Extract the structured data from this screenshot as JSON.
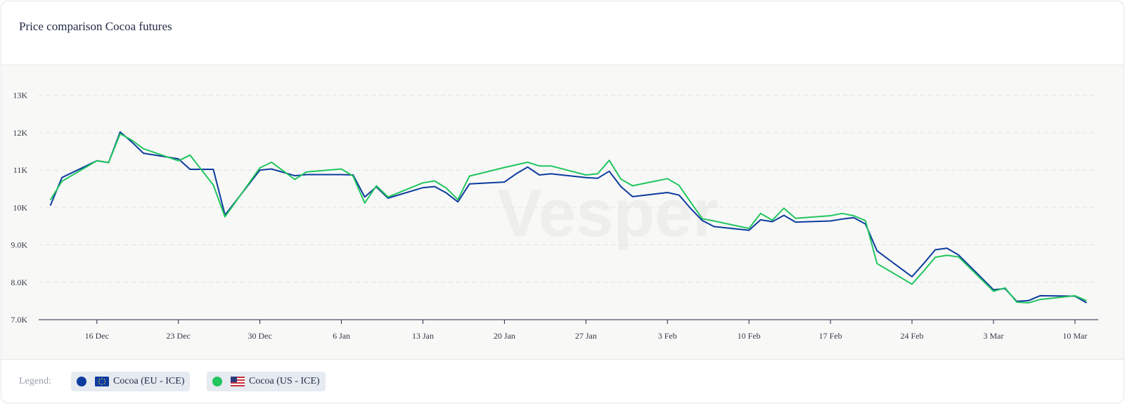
{
  "title": "Price comparison Cocoa futures",
  "watermark": "Vesper",
  "legend": {
    "label": "Legend:",
    "items": [
      {
        "name": "Cocoa (EU - ICE)",
        "color": "#0d3c9e",
        "flag": "eu-flag-icon"
      },
      {
        "name": "Cocoa (US - ICE)",
        "color": "#22c55e",
        "flag": "us-flag-icon"
      }
    ]
  },
  "chart_data": {
    "type": "line",
    "title": "Price comparison Cocoa futures",
    "xlabel": "",
    "ylabel": "",
    "ylim": [
      7000,
      13500
    ],
    "yticks": [
      7000,
      8000,
      9000,
      10000,
      11000,
      12000,
      13000
    ],
    "ytick_labels": [
      "7.0K",
      "8.0K",
      "9.0K",
      "10K",
      "11K",
      "12K",
      "13K"
    ],
    "xlim": [
      "2024-12-11",
      "2025-03-12"
    ],
    "xticks": [
      "2024-12-16",
      "2024-12-23",
      "2024-12-30",
      "2025-01-06",
      "2025-01-13",
      "2025-01-20",
      "2025-01-27",
      "2025-02-03",
      "2025-02-10",
      "2025-02-17",
      "2025-02-24",
      "2025-03-03",
      "2025-03-10"
    ],
    "xtick_labels": [
      "16 Dec",
      "23 Dec",
      "30 Dec",
      "6 Jan",
      "13 Jan",
      "20 Jan",
      "27 Jan",
      "3 Feb",
      "10 Feb",
      "17 Feb",
      "24 Feb",
      "3 Mar",
      "10 Mar"
    ],
    "grid": true,
    "legend_position": "bottom-left",
    "series": [
      {
        "name": "Cocoa (EU - ICE)",
        "color": "#0d3c9e",
        "points": [
          [
            "2024-12-12",
            10050
          ],
          [
            "2024-12-13",
            10800
          ],
          [
            "2024-12-16",
            11250
          ],
          [
            "2024-12-17",
            11200
          ],
          [
            "2024-12-18",
            12020
          ],
          [
            "2024-12-19",
            11750
          ],
          [
            "2024-12-20",
            11450
          ],
          [
            "2024-12-23",
            11300
          ],
          [
            "2024-12-24",
            11020
          ],
          [
            "2024-12-26",
            11020
          ],
          [
            "2024-12-27",
            9800
          ],
          [
            "2024-12-30",
            11000
          ],
          [
            "2024-12-31",
            11030
          ],
          [
            "2025-01-02",
            10850
          ],
          [
            "2025-01-03",
            10880
          ],
          [
            "2025-01-06",
            10880
          ],
          [
            "2025-01-07",
            10870
          ],
          [
            "2025-01-08",
            10280
          ],
          [
            "2025-01-09",
            10550
          ],
          [
            "2025-01-10",
            10250
          ],
          [
            "2025-01-13",
            10530
          ],
          [
            "2025-01-14",
            10560
          ],
          [
            "2025-01-15",
            10390
          ],
          [
            "2025-01-16",
            10150
          ],
          [
            "2025-01-17",
            10630
          ],
          [
            "2025-01-20",
            10680
          ],
          [
            "2025-01-21",
            10900
          ],
          [
            "2025-01-22",
            11080
          ],
          [
            "2025-01-23",
            10870
          ],
          [
            "2025-01-24",
            10900
          ],
          [
            "2025-01-27",
            10800
          ],
          [
            "2025-01-28",
            10780
          ],
          [
            "2025-01-29",
            10970
          ],
          [
            "2025-01-30",
            10560
          ],
          [
            "2025-01-31",
            10290
          ],
          [
            "2025-02-03",
            10400
          ],
          [
            "2025-02-04",
            10330
          ],
          [
            "2025-02-05",
            9970
          ],
          [
            "2025-02-06",
            9650
          ],
          [
            "2025-02-07",
            9490
          ],
          [
            "2025-02-10",
            9390
          ],
          [
            "2025-02-11",
            9670
          ],
          [
            "2025-02-12",
            9620
          ],
          [
            "2025-02-13",
            9790
          ],
          [
            "2025-02-14",
            9610
          ],
          [
            "2025-02-17",
            9640
          ],
          [
            "2025-02-18",
            9690
          ],
          [
            "2025-02-19",
            9730
          ],
          [
            "2025-02-20",
            9560
          ],
          [
            "2025-02-21",
            8840
          ],
          [
            "2025-02-24",
            8150
          ],
          [
            "2025-02-25",
            8500
          ],
          [
            "2025-02-26",
            8870
          ],
          [
            "2025-02-27",
            8910
          ],
          [
            "2025-02-28",
            8730
          ],
          [
            "2025-03-03",
            7800
          ],
          [
            "2025-03-04",
            7830
          ],
          [
            "2025-03-05",
            7490
          ],
          [
            "2025-03-06",
            7510
          ],
          [
            "2025-03-07",
            7640
          ],
          [
            "2025-03-10",
            7630
          ],
          [
            "2025-03-11",
            7450
          ]
        ]
      },
      {
        "name": "Cocoa (US - ICE)",
        "color": "#22c55e",
        "points": [
          [
            "2024-12-12",
            10200
          ],
          [
            "2024-12-13",
            10700
          ],
          [
            "2024-12-16",
            11250
          ],
          [
            "2024-12-17",
            11200
          ],
          [
            "2024-12-18",
            11970
          ],
          [
            "2024-12-19",
            11800
          ],
          [
            "2024-12-20",
            11570
          ],
          [
            "2024-12-23",
            11250
          ],
          [
            "2024-12-24",
            11400
          ],
          [
            "2024-12-26",
            10600
          ],
          [
            "2024-12-27",
            9750
          ],
          [
            "2024-12-30",
            11060
          ],
          [
            "2024-12-31",
            11210
          ],
          [
            "2025-01-02",
            10750
          ],
          [
            "2025-01-03",
            10950
          ],
          [
            "2025-01-06",
            11030
          ],
          [
            "2025-01-07",
            10840
          ],
          [
            "2025-01-08",
            10120
          ],
          [
            "2025-01-09",
            10580
          ],
          [
            "2025-01-10",
            10280
          ],
          [
            "2025-01-13",
            10660
          ],
          [
            "2025-01-14",
            10710
          ],
          [
            "2025-01-15",
            10520
          ],
          [
            "2025-01-16",
            10210
          ],
          [
            "2025-01-17",
            10840
          ],
          [
            "2025-01-20",
            11070
          ],
          [
            "2025-01-21",
            11140
          ],
          [
            "2025-01-22",
            11210
          ],
          [
            "2025-01-23",
            11110
          ],
          [
            "2025-01-24",
            11110
          ],
          [
            "2025-01-27",
            10870
          ],
          [
            "2025-01-28",
            10900
          ],
          [
            "2025-01-29",
            11260
          ],
          [
            "2025-01-30",
            10760
          ],
          [
            "2025-01-31",
            10580
          ],
          [
            "2025-02-03",
            10770
          ],
          [
            "2025-02-04",
            10590
          ],
          [
            "2025-02-05",
            10140
          ],
          [
            "2025-02-06",
            9700
          ],
          [
            "2025-02-07",
            9640
          ],
          [
            "2025-02-10",
            9440
          ],
          [
            "2025-02-11",
            9840
          ],
          [
            "2025-02-12",
            9660
          ],
          [
            "2025-02-13",
            9980
          ],
          [
            "2025-02-14",
            9710
          ],
          [
            "2025-02-17",
            9780
          ],
          [
            "2025-02-18",
            9840
          ],
          [
            "2025-02-19",
            9780
          ],
          [
            "2025-02-20",
            9650
          ],
          [
            "2025-02-21",
            8500
          ],
          [
            "2025-02-24",
            7950
          ],
          [
            "2025-02-25",
            8300
          ],
          [
            "2025-02-26",
            8670
          ],
          [
            "2025-02-27",
            8720
          ],
          [
            "2025-02-28",
            8680
          ],
          [
            "2025-03-03",
            7760
          ],
          [
            "2025-03-04",
            7850
          ],
          [
            "2025-03-05",
            7470
          ],
          [
            "2025-03-06",
            7450
          ],
          [
            "2025-03-07",
            7540
          ],
          [
            "2025-03-10",
            7640
          ],
          [
            "2025-03-11",
            7510
          ]
        ]
      }
    ]
  }
}
